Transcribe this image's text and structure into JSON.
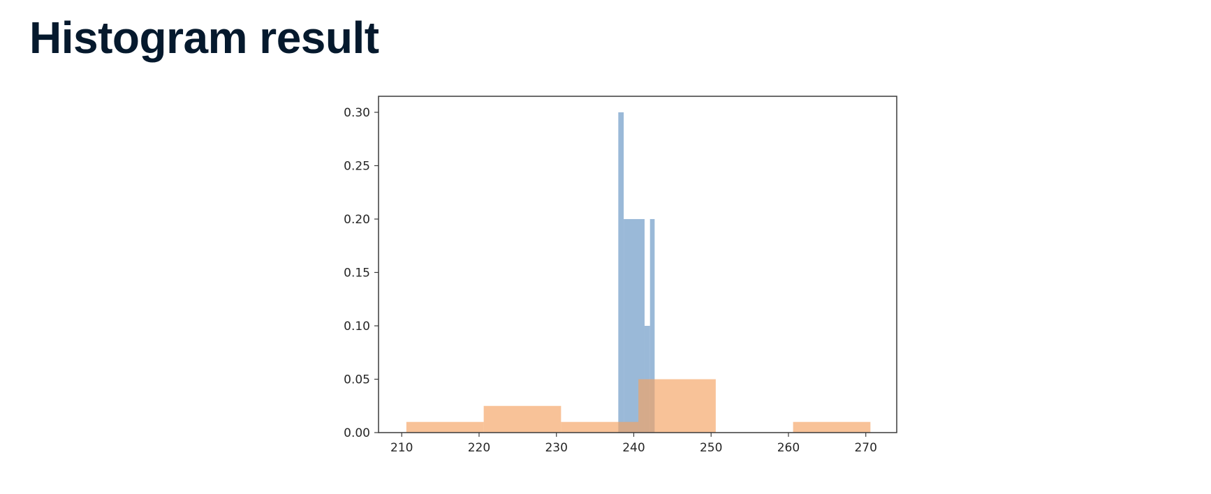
{
  "page": {
    "title": "Histogram result"
  },
  "chart_data": {
    "type": "bar",
    "title": "",
    "xlabel": "",
    "ylabel": "",
    "xlim": [
      207,
      274
    ],
    "ylim": [
      0,
      0.315
    ],
    "grid": false,
    "legend": null,
    "xticks": [
      210,
      220,
      230,
      240,
      250,
      260,
      270
    ],
    "yticks": [
      0.0,
      0.05,
      0.1,
      0.15,
      0.2,
      0.25,
      0.3
    ],
    "xtick_labels": [
      "210",
      "220",
      "230",
      "240",
      "250",
      "260",
      "270"
    ],
    "ytick_labels": [
      "0.00",
      "0.05",
      "0.10",
      "0.15",
      "0.20",
      "0.25",
      "0.30"
    ],
    "series": [
      {
        "color": "#6f9bc8",
        "opacity": 0.7,
        "bins": [
          {
            "x0": 238.0,
            "x1": 238.7,
            "value": 0.3
          },
          {
            "x0": 238.7,
            "x1": 241.4,
            "value": 0.2
          },
          {
            "x0": 241.4,
            "x1": 242.1,
            "value": 0.1
          },
          {
            "x0": 242.1,
            "x1": 242.7,
            "value": 0.2
          }
        ]
      },
      {
        "color": "#f4a261",
        "opacity": 0.65,
        "bins": [
          {
            "x0": 210.6,
            "x1": 220.6,
            "value": 0.01
          },
          {
            "x0": 220.6,
            "x1": 230.6,
            "value": 0.025
          },
          {
            "x0": 230.6,
            "x1": 240.6,
            "value": 0.01
          },
          {
            "x0": 240.6,
            "x1": 250.6,
            "value": 0.05
          },
          {
            "x0": 250.6,
            "x1": 260.6,
            "value": 0.0
          },
          {
            "x0": 260.6,
            "x1": 270.6,
            "value": 0.01
          }
        ]
      }
    ]
  }
}
